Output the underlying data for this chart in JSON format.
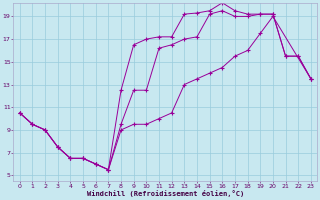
{
  "bg_color": "#c8e8f0",
  "line_color": "#990099",
  "grid_color": "#99ccdd",
  "xlabel": "Windchill (Refroidissement éolien,°C)",
  "xlim": [
    -0.5,
    23.5
  ],
  "ylim": [
    4.5,
    20.2
  ],
  "yticks": [
    5,
    7,
    9,
    11,
    13,
    15,
    17,
    19
  ],
  "xticks": [
    0,
    1,
    2,
    3,
    4,
    5,
    6,
    7,
    8,
    9,
    10,
    11,
    12,
    13,
    14,
    15,
    16,
    17,
    18,
    19,
    20,
    21,
    22,
    23
  ],
  "line1_x": [
    0,
    1,
    2,
    3,
    4,
    5,
    6,
    7,
    8,
    9,
    10,
    11,
    12,
    13,
    14,
    15,
    16,
    17,
    18,
    19,
    20,
    21,
    22,
    23
  ],
  "line1_y": [
    10.5,
    9.5,
    9.0,
    7.5,
    6.5,
    6.5,
    6.0,
    5.5,
    9.5,
    12.5,
    12.5,
    16.2,
    16.5,
    17.0,
    17.2,
    19.2,
    19.5,
    19.0,
    19.0,
    19.2,
    19.2,
    15.5,
    15.5,
    13.5
  ],
  "line2_x": [
    0,
    1,
    2,
    3,
    4,
    5,
    6,
    7,
    8,
    9,
    10,
    11,
    12,
    13,
    14,
    15,
    16,
    17,
    18,
    19,
    20,
    21,
    22,
    23
  ],
  "line2_y": [
    10.5,
    9.5,
    9.0,
    7.5,
    6.5,
    6.5,
    6.0,
    5.5,
    12.5,
    16.5,
    17.0,
    17.2,
    17.2,
    19.2,
    19.3,
    19.5,
    20.2,
    19.5,
    19.2,
    19.2,
    19.2,
    15.5,
    15.5,
    13.5
  ],
  "line3_x": [
    0,
    1,
    2,
    3,
    4,
    5,
    6,
    7,
    8,
    9,
    10,
    11,
    12,
    13,
    14,
    15,
    16,
    17,
    18,
    19,
    20,
    23
  ],
  "line3_y": [
    10.5,
    9.5,
    9.0,
    7.5,
    6.5,
    6.5,
    6.0,
    5.5,
    9.0,
    9.5,
    9.5,
    10.0,
    10.5,
    13.0,
    13.5,
    14.0,
    14.5,
    15.5,
    16.0,
    17.5,
    19.0,
    13.5
  ]
}
